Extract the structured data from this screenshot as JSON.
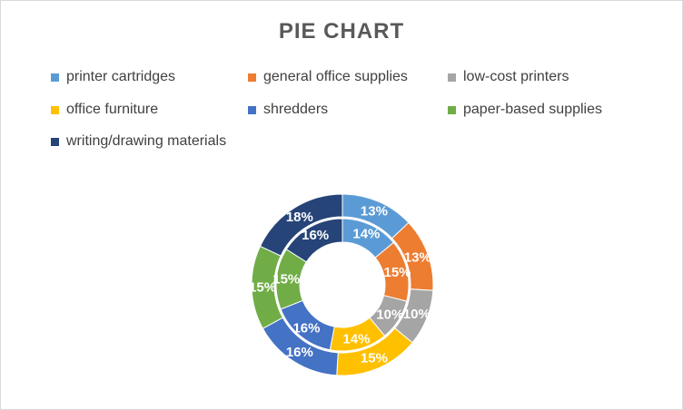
{
  "chart_data": {
    "type": "donut",
    "title": "PIE CHART",
    "legend_position": "top",
    "categories": [
      "printer cartridges",
      "general office supplies",
      "low-cost printers",
      "office furniture",
      "shredders",
      "paper-based supplies",
      "writing/drawing materials"
    ],
    "colors": [
      "#5b9bd5",
      "#ed7d31",
      "#a5a5a5",
      "#ffc000",
      "#4472c4",
      "#70ad47",
      "#264478"
    ],
    "series": [
      {
        "values": [
          13,
          13,
          10,
          15,
          16,
          15,
          18
        ],
        "labels": [
          "13%",
          "13%",
          "10%",
          "15%",
          "16%",
          "15%",
          "18%"
        ]
      },
      {
        "values": [
          14,
          15,
          10,
          14,
          16,
          15,
          16
        ],
        "labels": [
          "14%",
          "15%",
          "10%",
          "14%",
          "16%",
          "15%",
          "16%"
        ]
      }
    ]
  }
}
